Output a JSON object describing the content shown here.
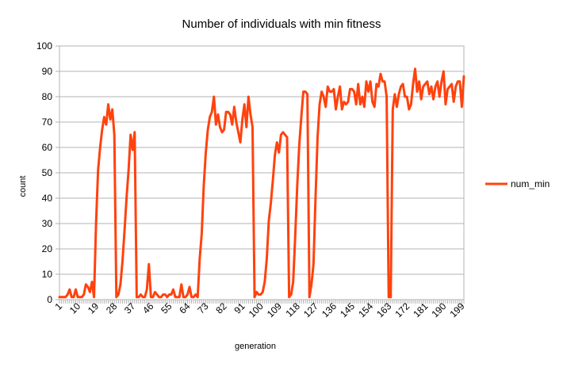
{
  "chart_data": {
    "type": "line",
    "title": "Number of individuals with min fitness",
    "xlabel": "generation",
    "ylabel": "count",
    "ylim": [
      0,
      100
    ],
    "yticks": [
      0,
      10,
      20,
      30,
      40,
      50,
      60,
      70,
      80,
      90,
      100
    ],
    "xlim": [
      1,
      200
    ],
    "xtick_labels": [
      1,
      10,
      19,
      28,
      37,
      46,
      55,
      64,
      73,
      82,
      91,
      100,
      109,
      118,
      127,
      136,
      145,
      154,
      163,
      172,
      181,
      190,
      199
    ],
    "grid": "horizontal",
    "legend_position": "right",
    "series": [
      {
        "name": "num_min",
        "color": "#ff420e",
        "values": [
          1,
          1,
          1,
          1,
          2,
          4,
          1,
          1,
          4,
          1,
          1,
          1,
          2,
          6,
          5,
          3,
          7,
          1,
          30,
          51,
          60,
          67,
          72,
          69,
          77,
          71,
          75,
          65,
          1,
          2,
          6,
          15,
          27,
          40,
          51,
          65,
          59,
          66,
          1,
          1,
          2,
          1,
          1,
          4,
          14,
          1,
          1,
          3,
          2,
          1,
          1,
          2,
          2,
          1,
          2,
          2,
          4,
          1,
          1,
          1,
          6,
          1,
          1,
          2,
          5,
          1,
          1,
          2,
          1,
          16,
          26,
          45,
          58,
          67,
          72,
          74,
          80,
          69,
          73,
          68,
          66,
          67,
          74,
          74,
          73,
          69,
          76,
          70,
          66,
          62,
          71,
          77,
          68,
          80,
          73,
          68,
          1,
          3,
          2,
          2,
          3,
          7,
          16,
          31,
          38,
          47,
          57,
          62,
          58,
          65,
          66,
          65,
          64,
          1,
          2,
          7,
          25,
          45,
          61,
          72,
          82,
          82,
          81,
          1,
          6,
          14,
          40,
          64,
          77,
          82,
          80,
          76,
          84,
          82,
          82,
          83,
          75,
          80,
          84,
          75,
          78,
          77,
          78,
          83,
          83,
          82,
          77,
          85,
          77,
          80,
          76,
          86,
          82,
          86,
          78,
          76,
          85,
          84,
          89,
          86,
          86,
          80,
          1,
          1,
          75,
          81,
          76,
          81,
          84,
          85,
          80,
          80,
          75,
          77,
          85,
          91,
          82,
          86,
          79,
          84,
          85,
          86,
          81,
          84,
          79,
          84,
          86,
          80,
          86,
          90,
          77,
          83,
          84,
          85,
          78,
          84,
          86,
          86,
          76,
          88
        ]
      }
    ]
  }
}
